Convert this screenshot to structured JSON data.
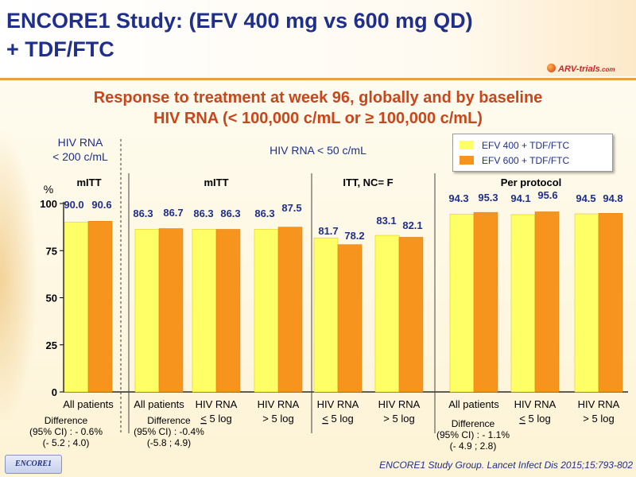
{
  "title_lines": [
    "ENCORE1 Study: (EFV 400 mg vs 600 mg QD)",
    "+ TDF/FTC"
  ],
  "logo": {
    "text": "ARV-trials",
    "domain": ".com"
  },
  "subtitle_lines": [
    "Response to treatment at week 96, globally and by baseline",
    "HIV RNA (< 100,000 c/mL or ≥ 100,000 c/mL)"
  ],
  "hiv_lt200_lines": [
    "HIV RNA",
    "< 200 c/mL"
  ],
  "hiv_lt50": "HIV RNA < 50 c/mL",
  "colors": {
    "efv400": "#ffff66",
    "efv600": "#f7941d",
    "title": "#1f2f8a",
    "subtitle": "#c8461a",
    "label": "#1f2f8a"
  },
  "chart_data": {
    "type": "bar",
    "ylabel": "%",
    "ylim": [
      0,
      100
    ],
    "yticks": [
      0,
      25,
      50,
      75,
      100
    ],
    "series": [
      {
        "name": "EFV 400 + TDF/FTC",
        "values": [
          90.0,
          86.3,
          86.3,
          86.3,
          81.7,
          83.1,
          94.3,
          94.1,
          94.5
        ]
      },
      {
        "name": "EFV 600 + TDF/FTC",
        "values": [
          90.6,
          86.7,
          86.3,
          87.5,
          78.2,
          82.1,
          95.3,
          95.6,
          94.8
        ]
      }
    ],
    "value_labels": {
      "efv400": [
        "90.0",
        "86.3",
        "86.3",
        "86.3",
        "81.7",
        "83.1",
        "94.3",
        "94.1",
        "94.5"
      ],
      "efv600": [
        "90.6",
        "86.7",
        "86.3",
        "87.5",
        "78.2",
        "82.1",
        "95.3",
        "95.6",
        "94.8"
      ]
    },
    "categories": [
      [
        "All patients"
      ],
      [
        "All patients"
      ],
      [
        "HIV RNA",
        "< 5 log"
      ],
      [
        "HIV RNA",
        "> 5 log"
      ],
      [
        "HIV RNA",
        "< 5 log"
      ],
      [
        "HIV RNA",
        "> 5 log"
      ],
      [
        "All patients"
      ],
      [
        "HIV RNA",
        "< 5 log"
      ],
      [
        "HIV RNA",
        "> 5 log"
      ]
    ],
    "group_headers": [
      "mITT",
      "mITT",
      "ITT, NC= F",
      "Per protocol"
    ],
    "differences": [
      [
        "Difference",
        "(95% CI) : - 0.6%",
        "(- 5.2 ; 4.0)"
      ],
      [
        "Difference",
        "(95% CI) : -0.4%",
        "(-5.8 ; 4.9)"
      ],
      [
        "Difference",
        "(95% CI) : - 1.1%",
        "(- 4.9 ; 2.8)"
      ]
    ],
    "legend_position": "top-right",
    "grid": false
  },
  "footer": {
    "badge": "ENCORE1",
    "citation": "ENCORE1 Study Group. Lancet Infect Dis 2015;15:793-802"
  }
}
